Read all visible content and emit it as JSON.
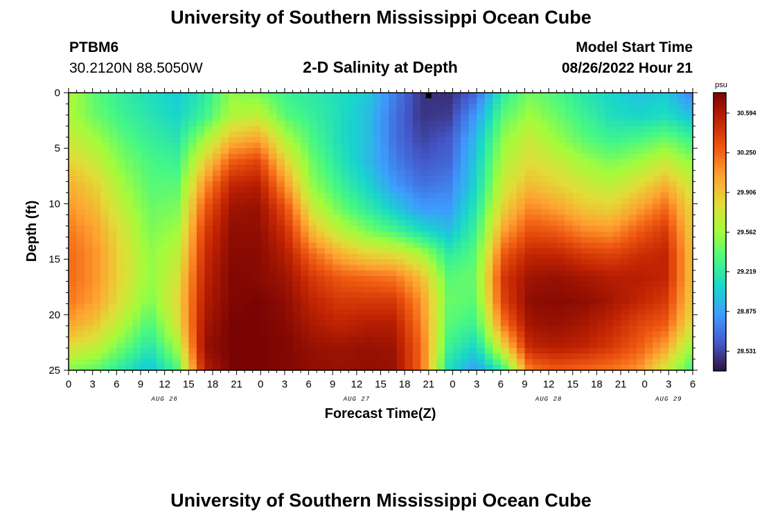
{
  "header": {
    "title": "University of Southern Mississippi Ocean Cube",
    "station": "PTBM6",
    "coords": "30.2120N  88.5050W",
    "subtitle": "2-D Salinity at Depth",
    "model_label": "Model Start Time",
    "model_time": "08/26/2022 Hour 21"
  },
  "footer": {
    "title": "University of Southern Mississippi Ocean Cube"
  },
  "chart_data": {
    "type": "heatmap",
    "title": "2-D Salinity at Depth",
    "xlabel": "Forecast Time(Z)",
    "ylabel": "Depth (ft)",
    "x_ticks": [
      "0",
      "3",
      "6",
      "9",
      "12",
      "15",
      "18",
      "21",
      "0",
      "3",
      "6",
      "9",
      "12",
      "15",
      "18",
      "21",
      "0",
      "3",
      "6",
      "9",
      "12",
      "15",
      "18",
      "21",
      "0",
      "3",
      "6"
    ],
    "x_range_hours": [
      0,
      78
    ],
    "day_labels": [
      {
        "label": "AUG 26",
        "hour": 12
      },
      {
        "label": "AUG 27",
        "hour": 36
      },
      {
        "label": "AUG 28",
        "hour": 60
      },
      {
        "label": "AUG 29",
        "hour": 75
      }
    ],
    "y_ticks": [
      "0",
      "5",
      "10",
      "15",
      "20",
      "25"
    ],
    "y_range_ft": [
      0,
      25
    ],
    "colorbar": {
      "unit": "psu",
      "labels": [
        "30.594",
        "30.250",
        "29.906",
        "29.562",
        "29.219",
        "28.875",
        "28.531"
      ],
      "range": [
        28.36,
        30.77
      ]
    },
    "current_time_marker_hour": 45,
    "value_scale": "normalized 0-1 of colorbar range",
    "grid_rows": [
      [
        0.52,
        0.42,
        0.36,
        0.32,
        0.28,
        0.35,
        0.48,
        0.45,
        0.38,
        0.35,
        0.32,
        0.28,
        0.16,
        0.05,
        0.04,
        0.12,
        0.36,
        0.45,
        0.4,
        0.34,
        0.3,
        0.26,
        0.28,
        0.16
      ],
      [
        0.52,
        0.44,
        0.38,
        0.34,
        0.3,
        0.38,
        0.52,
        0.55,
        0.42,
        0.37,
        0.32,
        0.26,
        0.14,
        0.05,
        0.06,
        0.2,
        0.42,
        0.5,
        0.44,
        0.38,
        0.32,
        0.3,
        0.32,
        0.26
      ],
      [
        0.56,
        0.5,
        0.42,
        0.37,
        0.34,
        0.5,
        0.66,
        0.7,
        0.52,
        0.4,
        0.32,
        0.26,
        0.14,
        0.07,
        0.1,
        0.25,
        0.48,
        0.56,
        0.49,
        0.42,
        0.38,
        0.4,
        0.44,
        0.38
      ],
      [
        0.62,
        0.56,
        0.46,
        0.4,
        0.38,
        0.62,
        0.8,
        0.84,
        0.62,
        0.44,
        0.34,
        0.26,
        0.16,
        0.1,
        0.12,
        0.28,
        0.52,
        0.6,
        0.56,
        0.5,
        0.46,
        0.5,
        0.56,
        0.48
      ],
      [
        0.68,
        0.62,
        0.5,
        0.42,
        0.42,
        0.72,
        0.9,
        0.92,
        0.72,
        0.48,
        0.38,
        0.3,
        0.2,
        0.14,
        0.16,
        0.3,
        0.56,
        0.66,
        0.62,
        0.57,
        0.54,
        0.6,
        0.68,
        0.56
      ],
      [
        0.72,
        0.66,
        0.54,
        0.44,
        0.46,
        0.8,
        0.95,
        0.96,
        0.82,
        0.56,
        0.44,
        0.36,
        0.28,
        0.2,
        0.2,
        0.34,
        0.62,
        0.74,
        0.7,
        0.64,
        0.62,
        0.7,
        0.78,
        0.6
      ],
      [
        0.76,
        0.7,
        0.58,
        0.46,
        0.5,
        0.85,
        0.97,
        0.97,
        0.88,
        0.66,
        0.54,
        0.46,
        0.4,
        0.32,
        0.26,
        0.38,
        0.7,
        0.82,
        0.8,
        0.74,
        0.72,
        0.8,
        0.86,
        0.62
      ],
      [
        0.78,
        0.72,
        0.6,
        0.48,
        0.54,
        0.88,
        0.98,
        0.98,
        0.92,
        0.78,
        0.68,
        0.62,
        0.6,
        0.52,
        0.36,
        0.42,
        0.8,
        0.9,
        0.9,
        0.86,
        0.84,
        0.88,
        0.9,
        0.64
      ],
      [
        0.78,
        0.72,
        0.6,
        0.48,
        0.58,
        0.9,
        0.99,
        0.98,
        0.95,
        0.86,
        0.8,
        0.78,
        0.76,
        0.66,
        0.42,
        0.44,
        0.86,
        0.95,
        0.96,
        0.94,
        0.92,
        0.92,
        0.9,
        0.64
      ],
      [
        0.76,
        0.7,
        0.58,
        0.46,
        0.6,
        0.92,
        0.99,
        1.0,
        0.97,
        0.9,
        0.86,
        0.86,
        0.86,
        0.72,
        0.44,
        0.42,
        0.84,
        0.97,
        0.98,
        0.97,
        0.94,
        0.9,
        0.86,
        0.62
      ],
      [
        0.7,
        0.64,
        0.52,
        0.4,
        0.58,
        0.94,
        1.0,
        1.0,
        0.98,
        0.93,
        0.9,
        0.92,
        0.92,
        0.75,
        0.42,
        0.38,
        0.76,
        0.95,
        0.96,
        0.94,
        0.9,
        0.84,
        0.8,
        0.58
      ],
      [
        0.6,
        0.55,
        0.44,
        0.34,
        0.5,
        0.96,
        1.0,
        1.0,
        0.99,
        0.96,
        0.95,
        0.96,
        0.95,
        0.78,
        0.38,
        0.3,
        0.6,
        0.9,
        0.92,
        0.9,
        0.86,
        0.8,
        0.7,
        0.48
      ],
      [
        0.46,
        0.42,
        0.34,
        0.26,
        0.4,
        0.92,
        1.0,
        1.0,
        0.99,
        0.97,
        0.96,
        0.97,
        0.96,
        0.78,
        0.32,
        0.2,
        0.36,
        0.76,
        0.8,
        0.78,
        0.76,
        0.72,
        0.56,
        0.38
      ]
    ]
  }
}
